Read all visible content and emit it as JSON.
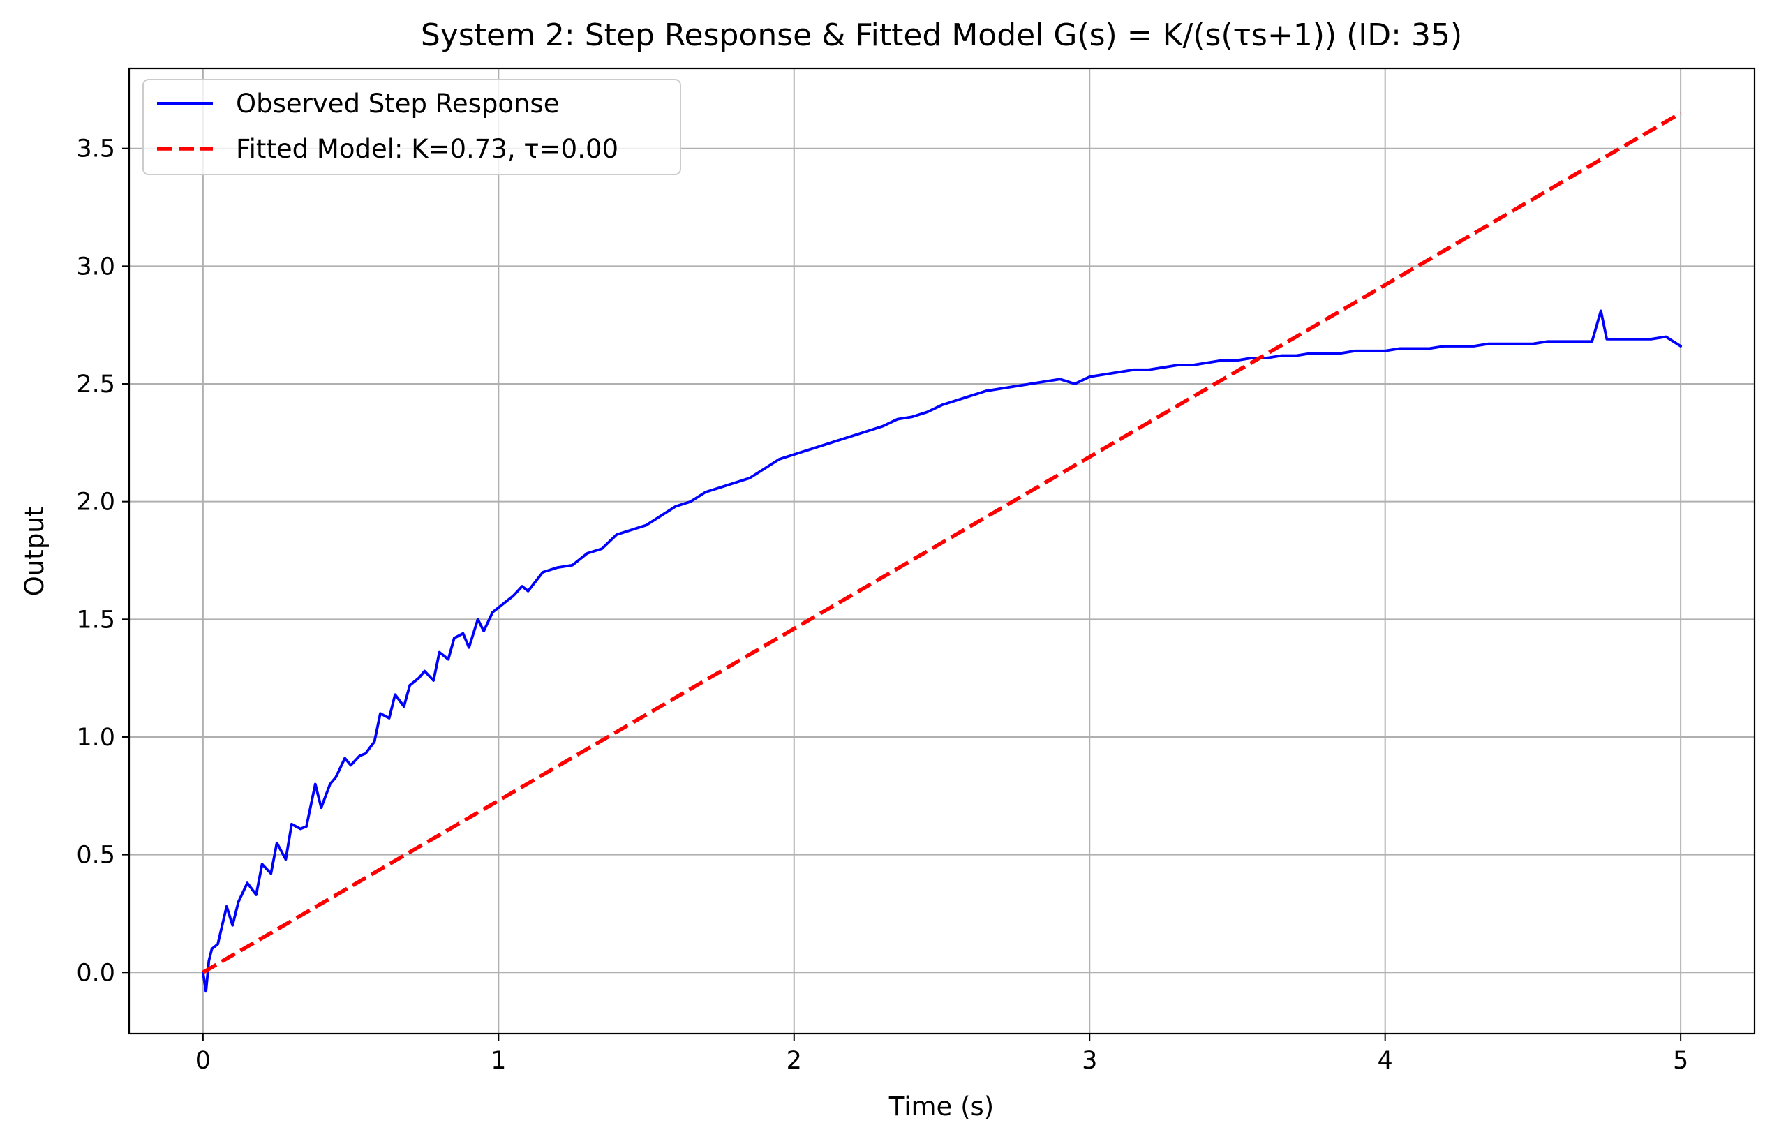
{
  "chart_data": {
    "type": "line",
    "title": "System 2: Step Response & Fitted Model G(s) = K/(s(τs+1)) (ID: 35)",
    "xlabel": "Time (s)",
    "ylabel": "Output",
    "xlim": [
      -0.25,
      5.25
    ],
    "ylim": [
      -0.26,
      3.84
    ],
    "xticks": [
      0,
      1,
      2,
      3,
      4,
      5
    ],
    "xtick_labels": [
      "0",
      "1",
      "2",
      "3",
      "4",
      "5"
    ],
    "yticks": [
      0.0,
      0.5,
      1.0,
      1.5,
      2.0,
      2.5,
      3.0,
      3.5
    ],
    "ytick_labels": [
      "0.0",
      "0.5",
      "1.0",
      "1.5",
      "2.0",
      "2.5",
      "3.0",
      "3.5"
    ],
    "grid": true,
    "legend_position": "top-left",
    "series": [
      {
        "name": "Observed Step Response",
        "color": "#0000ff",
        "style": "solid",
        "x": [
          0,
          0.01,
          0.02,
          0.03,
          0.05,
          0.08,
          0.1,
          0.12,
          0.15,
          0.18,
          0.2,
          0.23,
          0.25,
          0.28,
          0.3,
          0.33,
          0.35,
          0.38,
          0.4,
          0.43,
          0.45,
          0.48,
          0.5,
          0.53,
          0.55,
          0.58,
          0.6,
          0.63,
          0.65,
          0.68,
          0.7,
          0.73,
          0.75,
          0.78,
          0.8,
          0.83,
          0.85,
          0.88,
          0.9,
          0.93,
          0.95,
          0.98,
          1.0,
          1.03,
          1.05,
          1.08,
          1.1,
          1.15,
          1.2,
          1.25,
          1.3,
          1.35,
          1.4,
          1.45,
          1.5,
          1.55,
          1.6,
          1.65,
          1.7,
          1.75,
          1.8,
          1.85,
          1.9,
          1.95,
          2.0,
          2.05,
          2.1,
          2.15,
          2.2,
          2.25,
          2.3,
          2.35,
          2.4,
          2.45,
          2.5,
          2.55,
          2.6,
          2.65,
          2.7,
          2.75,
          2.8,
          2.85,
          2.9,
          2.95,
          3.0,
          3.05,
          3.1,
          3.15,
          3.2,
          3.25,
          3.3,
          3.35,
          3.4,
          3.45,
          3.5,
          3.55,
          3.6,
          3.65,
          3.7,
          3.75,
          3.8,
          3.85,
          3.9,
          3.95,
          4.0,
          4.05,
          4.1,
          4.15,
          4.2,
          4.25,
          4.3,
          4.35,
          4.4,
          4.45,
          4.5,
          4.55,
          4.6,
          4.65,
          4.7,
          4.73,
          4.75,
          4.8,
          4.85,
          4.9,
          4.95,
          5.0
        ],
        "y": [
          0.0,
          -0.08,
          0.05,
          0.1,
          0.12,
          0.28,
          0.2,
          0.3,
          0.38,
          0.33,
          0.46,
          0.42,
          0.55,
          0.48,
          0.63,
          0.61,
          0.62,
          0.8,
          0.7,
          0.8,
          0.83,
          0.91,
          0.88,
          0.92,
          0.93,
          0.98,
          1.1,
          1.08,
          1.18,
          1.13,
          1.22,
          1.25,
          1.28,
          1.24,
          1.36,
          1.33,
          1.42,
          1.44,
          1.38,
          1.5,
          1.45,
          1.53,
          1.55,
          1.58,
          1.6,
          1.64,
          1.62,
          1.7,
          1.72,
          1.73,
          1.78,
          1.8,
          1.86,
          1.88,
          1.9,
          1.94,
          1.98,
          2.0,
          2.04,
          2.06,
          2.08,
          2.1,
          2.14,
          2.18,
          2.2,
          2.22,
          2.24,
          2.26,
          2.28,
          2.3,
          2.32,
          2.35,
          2.36,
          2.38,
          2.41,
          2.43,
          2.45,
          2.47,
          2.48,
          2.49,
          2.5,
          2.51,
          2.52,
          2.5,
          2.53,
          2.54,
          2.55,
          2.56,
          2.56,
          2.57,
          2.58,
          2.58,
          2.59,
          2.6,
          2.6,
          2.61,
          2.61,
          2.62,
          2.62,
          2.63,
          2.63,
          2.63,
          2.64,
          2.64,
          2.64,
          2.65,
          2.65,
          2.65,
          2.66,
          2.66,
          2.66,
          2.67,
          2.67,
          2.67,
          2.67,
          2.68,
          2.68,
          2.68,
          2.68,
          2.81,
          2.69,
          2.69,
          2.69,
          2.69,
          2.7,
          2.66
        ]
      },
      {
        "name": "Fitted Model: K=0.73, τ=0.00",
        "color": "#ff0000",
        "style": "dashed",
        "x": [
          0,
          5
        ],
        "y": [
          0.0,
          3.65
        ]
      }
    ]
  }
}
